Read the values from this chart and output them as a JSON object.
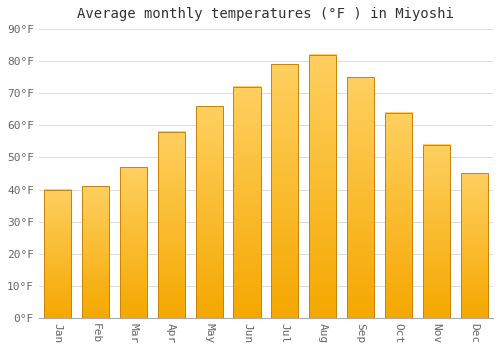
{
  "title": "Average monthly temperatures (°F ) in Miyoshi",
  "months": [
    "Jan",
    "Feb",
    "Mar",
    "Apr",
    "May",
    "Jun",
    "Jul",
    "Aug",
    "Sep",
    "Oct",
    "Nov",
    "Dec"
  ],
  "values": [
    40,
    41,
    47,
    58,
    66,
    72,
    79,
    82,
    75,
    64,
    54,
    45
  ],
  "bar_color_bottom": "#F5A800",
  "bar_color_top": "#FFD060",
  "bar_edge_color": "#C8830A",
  "background_color": "#FFFFFF",
  "grid_color": "#DDDDDD",
  "text_color": "#666666",
  "title_color": "#333333",
  "ylim": [
    0,
    90
  ],
  "yticks": [
    0,
    10,
    20,
    30,
    40,
    50,
    60,
    70,
    80,
    90
  ],
  "title_fontsize": 10,
  "tick_fontsize": 8,
  "bar_width": 0.72
}
